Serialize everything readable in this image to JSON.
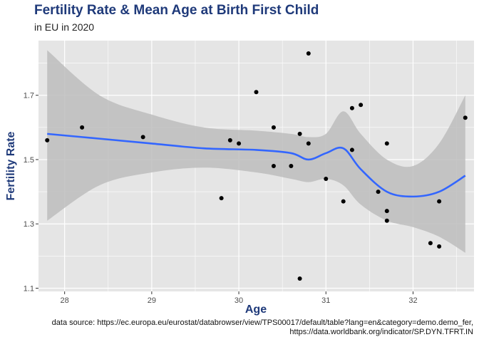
{
  "title": "Fertility Rate & Mean Age at Birth First Child",
  "subtitle": "in EU in 2020",
  "caption_line1": "data source: https://ec.europa.eu/eurostat/databrowser/view/TPS00017/default/table?lang=en&category=demo.demo_fer,",
  "caption_line2": "https://data.worldbank.org/indicator/SP.DYN.TFRT.IN",
  "colors": {
    "panel": "#e5e5e5",
    "grid_major": "#ffffff",
    "ribbon": "#bdbdbd",
    "smooth_line": "#3366ff",
    "points": "#000000",
    "title": "#1f3a7a"
  },
  "chart_data": {
    "type": "scatter",
    "xlabel": "Age",
    "ylabel": "Fertility Rate",
    "xlim": [
      27.7,
      32.7
    ],
    "ylim": [
      1.09,
      1.87
    ],
    "x_ticks": [
      28,
      29,
      30,
      31,
      32
    ],
    "y_ticks": [
      1.1,
      1.3,
      1.5,
      1.7
    ],
    "y_tick_labels": [
      "1.1",
      "1.3",
      "1.5",
      "1.7"
    ],
    "grid": true,
    "points": [
      {
        "x": 27.8,
        "y": 1.56
      },
      {
        "x": 28.2,
        "y": 1.6
      },
      {
        "x": 28.9,
        "y": 1.57
      },
      {
        "x": 29.8,
        "y": 1.38
      },
      {
        "x": 29.9,
        "y": 1.56
      },
      {
        "x": 30.0,
        "y": 1.55
      },
      {
        "x": 30.2,
        "y": 1.71
      },
      {
        "x": 30.4,
        "y": 1.6
      },
      {
        "x": 30.4,
        "y": 1.48
      },
      {
        "x": 30.6,
        "y": 1.48
      },
      {
        "x": 30.7,
        "y": 1.58
      },
      {
        "x": 30.7,
        "y": 1.13
      },
      {
        "x": 30.8,
        "y": 1.83
      },
      {
        "x": 30.8,
        "y": 1.55
      },
      {
        "x": 31.0,
        "y": 1.44
      },
      {
        "x": 31.2,
        "y": 1.37
      },
      {
        "x": 31.3,
        "y": 1.66
      },
      {
        "x": 31.3,
        "y": 1.53
      },
      {
        "x": 31.4,
        "y": 1.67
      },
      {
        "x": 31.6,
        "y": 1.4
      },
      {
        "x": 31.7,
        "y": 1.55
      },
      {
        "x": 31.7,
        "y": 1.34
      },
      {
        "x": 31.7,
        "y": 1.31
      },
      {
        "x": 32.2,
        "y": 1.24
      },
      {
        "x": 32.3,
        "y": 1.37
      },
      {
        "x": 32.3,
        "y": 1.23
      },
      {
        "x": 32.6,
        "y": 1.63
      }
    ],
    "smooth": {
      "x": [
        27.8,
        28.4,
        29.0,
        29.6,
        30.2,
        30.6,
        30.8,
        31.0,
        31.2,
        31.4,
        31.7,
        32.0,
        32.3,
        32.6
      ],
      "y": [
        1.58,
        1.565,
        1.55,
        1.535,
        1.53,
        1.52,
        1.5,
        1.52,
        1.535,
        1.47,
        1.4,
        1.385,
        1.4,
        1.45
      ],
      "lower": [
        1.31,
        1.42,
        1.46,
        1.475,
        1.46,
        1.44,
        1.43,
        1.44,
        1.42,
        1.36,
        1.31,
        1.29,
        1.26,
        1.21
      ],
      "upper": [
        1.84,
        1.7,
        1.64,
        1.6,
        1.59,
        1.58,
        1.57,
        1.58,
        1.65,
        1.58,
        1.5,
        1.48,
        1.55,
        1.7
      ]
    }
  }
}
